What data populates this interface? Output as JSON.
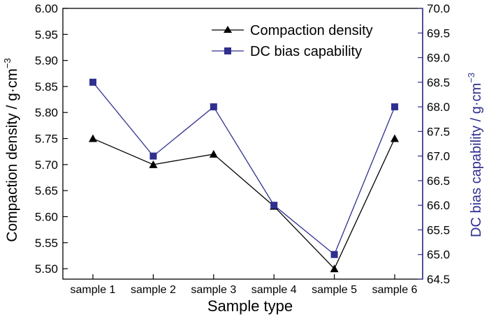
{
  "colors": {
    "left_series": "#000000",
    "right_series": "#2f2f8f",
    "right_axis": "#2f2f8f",
    "axis": "#000000"
  },
  "chart_data": {
    "type": "line",
    "title": "",
    "categories": [
      "sample 1",
      "sample 2",
      "sample 3",
      "sample 4",
      "sample 5",
      "sample 6"
    ],
    "xlabel": "Sample  type",
    "ylabel_left": {
      "main": "Compaction density / g·cm",
      "sup": "−3"
    },
    "ylabel_right": {
      "main": "DC bias capability / g·cm",
      "sup": "−3"
    },
    "y_left": {
      "lim": [
        5.48,
        6.0
      ],
      "ticks": [
        "5.50",
        "5.55",
        "5.60",
        "5.65",
        "5.70",
        "5.75",
        "5.80",
        "5.85",
        "5.90",
        "5.95",
        "6.00"
      ]
    },
    "y_right": {
      "lim": [
        64.5,
        70.0
      ],
      "ticks": [
        "64.5",
        "65.0",
        "65.5",
        "66.0",
        "66.5",
        "67.0",
        "67.5",
        "68.0",
        "68.5",
        "69.0",
        "69.5",
        "70.0"
      ]
    },
    "grid": false,
    "legend_position": "top-right",
    "series": [
      {
        "name": "Compaction density",
        "axis": "left",
        "marker": "triangle",
        "values": [
          5.75,
          5.7,
          5.72,
          5.62,
          5.5,
          5.75
        ]
      },
      {
        "name": "DC bias capability",
        "axis": "right",
        "marker": "square",
        "values": [
          68.5,
          67.0,
          68.0,
          66.0,
          65.0,
          68.0
        ]
      }
    ]
  }
}
